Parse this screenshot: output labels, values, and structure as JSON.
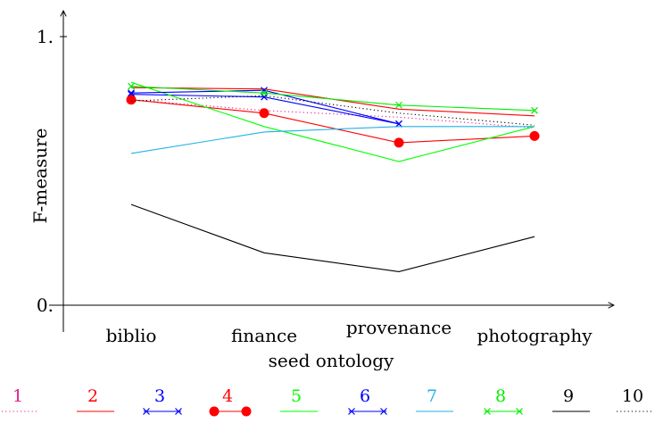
{
  "chart_data": {
    "type": "line",
    "title": "",
    "xlabel": "seed ontology",
    "ylabel": "F-measure",
    "categories": [
      "biblio",
      "finance",
      "provenance",
      "photography"
    ],
    "ylim": [
      0,
      1
    ],
    "yticks": [
      "0.",
      "1."
    ],
    "grid": false,
    "legend_position": "bottom",
    "series": [
      {
        "name": "1",
        "values": [
          0.765,
          0.725,
          0.7,
          0.66
        ],
        "color": "#e0218a",
        "dash": "dotted",
        "marker": "none"
      },
      {
        "name": "2",
        "values": [
          0.81,
          0.805,
          0.73,
          0.705
        ],
        "color": "#ff0000",
        "dash": "solid",
        "marker": "none"
      },
      {
        "name": "3",
        "values": [
          0.785,
          0.775,
          0.675,
          null
        ],
        "color": "#0000ff",
        "dash": "solid",
        "marker": "x"
      },
      {
        "name": "4",
        "values": [
          0.765,
          0.715,
          0.605,
          0.63
        ],
        "color": "#ff0000",
        "dash": "solid",
        "marker": "circle"
      },
      {
        "name": "5",
        "values": [
          0.83,
          0.665,
          0.535,
          0.665
        ],
        "color": "#00ff00",
        "dash": "solid",
        "marker": "none"
      },
      {
        "name": "6",
        "values": [
          0.79,
          0.8,
          0.675,
          null
        ],
        "color": "#0000ff",
        "dash": "solid",
        "marker": "x"
      },
      {
        "name": "7",
        "values": [
          0.565,
          0.645,
          0.665,
          0.665
        ],
        "color": "#1fb2e6",
        "dash": "solid",
        "marker": "none"
      },
      {
        "name": "8",
        "values": [
          0.815,
          0.79,
          0.745,
          0.725
        ],
        "color": "#00ee00",
        "dash": "solid",
        "marker": "x"
      },
      {
        "name": "9",
        "values": [
          0.375,
          0.195,
          0.125,
          0.255
        ],
        "color": "#000000",
        "dash": "solid",
        "marker": "none"
      },
      {
        "name": "10",
        "values": [
          0.76,
          0.78,
          0.715,
          0.67
        ],
        "color": "#000000",
        "dash": "dotted",
        "marker": "none"
      }
    ]
  }
}
